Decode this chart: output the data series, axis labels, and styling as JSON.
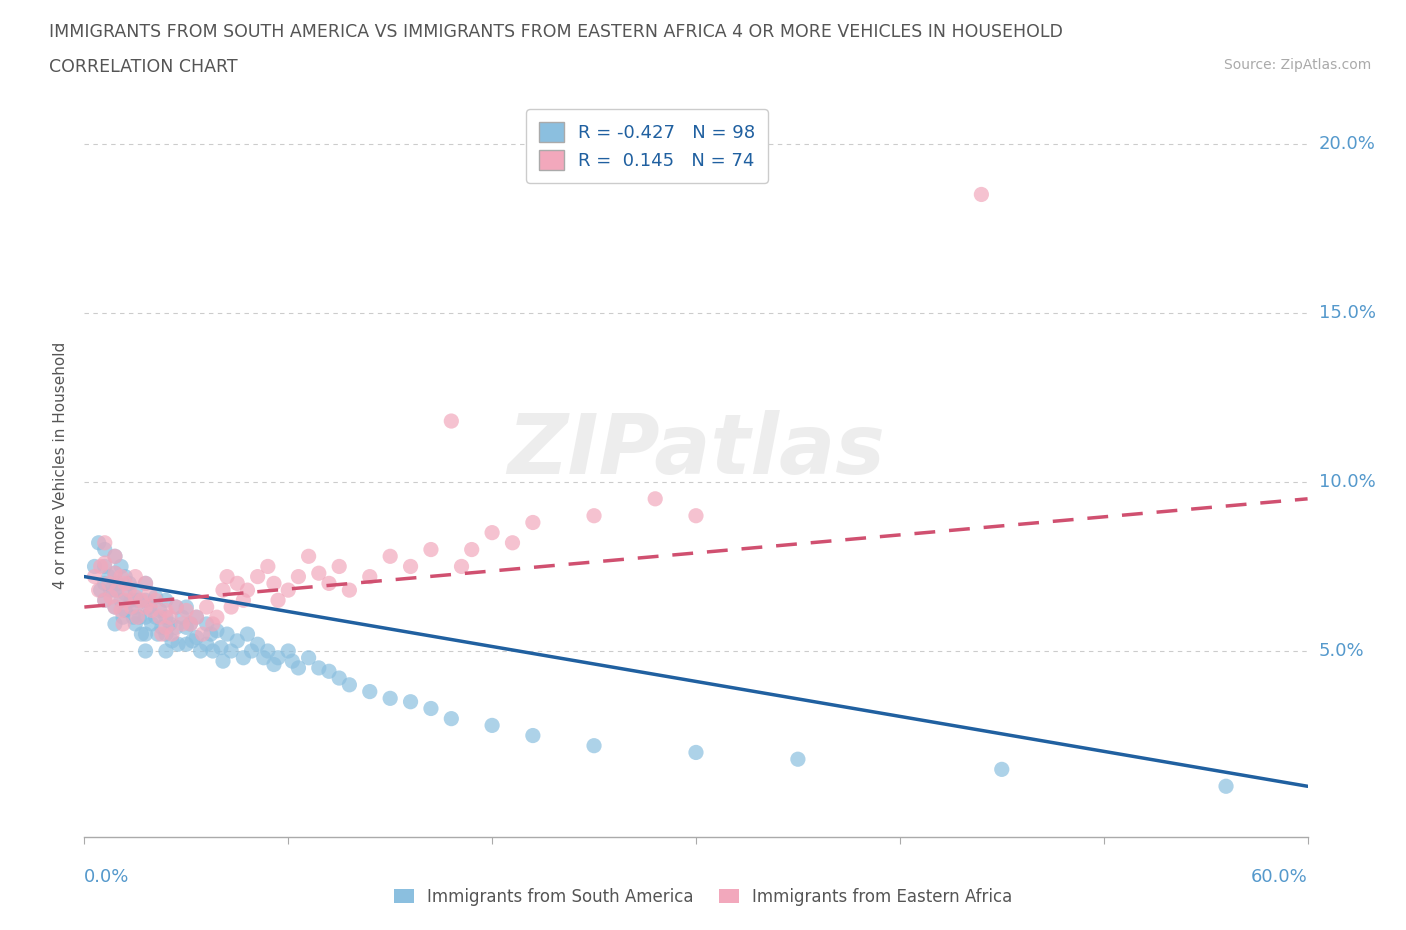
{
  "title_line1": "IMMIGRANTS FROM SOUTH AMERICA VS IMMIGRANTS FROM EASTERN AFRICA 4 OR MORE VEHICLES IN HOUSEHOLD",
  "title_line2": "CORRELATION CHART",
  "source_text": "Source: ZipAtlas.com",
  "ylabel": "4 or more Vehicles in Household",
  "ytick_vals": [
    0.0,
    0.05,
    0.1,
    0.15,
    0.2
  ],
  "ytick_labels": [
    "",
    "5.0%",
    "10.0%",
    "15.0%",
    "20.0%"
  ],
  "xlim": [
    0.0,
    0.6
  ],
  "ylim": [
    -0.005,
    0.215
  ],
  "legend_label1": "R = -0.427   N = 98",
  "legend_label2": "R =  0.145   N = 74",
  "color_blue": "#8bbfdf",
  "color_pink": "#f2a8bc",
  "color_blue_line": "#2060a0",
  "color_pink_line": "#d05070",
  "color_axis_tick": "#5599cc",
  "watermark_text": "ZIPatlas",
  "blue_x": [
    0.005,
    0.007,
    0.008,
    0.01,
    0.01,
    0.01,
    0.01,
    0.012,
    0.013,
    0.015,
    0.015,
    0.015,
    0.015,
    0.015,
    0.016,
    0.018,
    0.018,
    0.019,
    0.02,
    0.02,
    0.02,
    0.022,
    0.023,
    0.024,
    0.025,
    0.025,
    0.025,
    0.026,
    0.027,
    0.028,
    0.03,
    0.03,
    0.03,
    0.03,
    0.03,
    0.032,
    0.033,
    0.035,
    0.035,
    0.036,
    0.037,
    0.038,
    0.04,
    0.04,
    0.04,
    0.04,
    0.042,
    0.043,
    0.045,
    0.045,
    0.046,
    0.048,
    0.05,
    0.05,
    0.05,
    0.052,
    0.053,
    0.055,
    0.055,
    0.057,
    0.06,
    0.06,
    0.062,
    0.063,
    0.065,
    0.067,
    0.068,
    0.07,
    0.072,
    0.075,
    0.078,
    0.08,
    0.082,
    0.085,
    0.088,
    0.09,
    0.093,
    0.095,
    0.1,
    0.102,
    0.105,
    0.11,
    0.115,
    0.12,
    0.125,
    0.13,
    0.14,
    0.15,
    0.16,
    0.17,
    0.18,
    0.2,
    0.22,
    0.25,
    0.3,
    0.35,
    0.45,
    0.56
  ],
  "blue_y": [
    0.075,
    0.082,
    0.068,
    0.075,
    0.07,
    0.065,
    0.08,
    0.072,
    0.068,
    0.078,
    0.073,
    0.068,
    0.063,
    0.058,
    0.07,
    0.075,
    0.065,
    0.06,
    0.072,
    0.067,
    0.062,
    0.07,
    0.065,
    0.06,
    0.068,
    0.063,
    0.058,
    0.065,
    0.06,
    0.055,
    0.07,
    0.065,
    0.06,
    0.055,
    0.05,
    0.063,
    0.058,
    0.066,
    0.06,
    0.055,
    0.062,
    0.057,
    0.065,
    0.06,
    0.055,
    0.05,
    0.058,
    0.053,
    0.063,
    0.057,
    0.052,
    0.06,
    0.063,
    0.057,
    0.052,
    0.058,
    0.053,
    0.06,
    0.054,
    0.05,
    0.058,
    0.052,
    0.055,
    0.05,
    0.056,
    0.051,
    0.047,
    0.055,
    0.05,
    0.053,
    0.048,
    0.055,
    0.05,
    0.052,
    0.048,
    0.05,
    0.046,
    0.048,
    0.05,
    0.047,
    0.045,
    0.048,
    0.045,
    0.044,
    0.042,
    0.04,
    0.038,
    0.036,
    0.035,
    0.033,
    0.03,
    0.028,
    0.025,
    0.022,
    0.02,
    0.018,
    0.015,
    0.01
  ],
  "pink_x": [
    0.005,
    0.007,
    0.008,
    0.01,
    0.01,
    0.01,
    0.012,
    0.013,
    0.015,
    0.015,
    0.015,
    0.016,
    0.018,
    0.018,
    0.019,
    0.02,
    0.02,
    0.022,
    0.023,
    0.025,
    0.025,
    0.026,
    0.028,
    0.03,
    0.03,
    0.032,
    0.033,
    0.035,
    0.037,
    0.038,
    0.04,
    0.04,
    0.042,
    0.043,
    0.045,
    0.048,
    0.05,
    0.052,
    0.055,
    0.058,
    0.06,
    0.063,
    0.065,
    0.068,
    0.07,
    0.072,
    0.075,
    0.078,
    0.08,
    0.085,
    0.09,
    0.093,
    0.095,
    0.1,
    0.105,
    0.11,
    0.115,
    0.12,
    0.125,
    0.13,
    0.14,
    0.15,
    0.16,
    0.17,
    0.18,
    0.185,
    0.19,
    0.2,
    0.21,
    0.22,
    0.25,
    0.28,
    0.3,
    0.44
  ],
  "pink_y": [
    0.072,
    0.068,
    0.075,
    0.082,
    0.076,
    0.065,
    0.07,
    0.066,
    0.078,
    0.073,
    0.063,
    0.068,
    0.072,
    0.062,
    0.058,
    0.07,
    0.065,
    0.068,
    0.063,
    0.072,
    0.066,
    0.06,
    0.065,
    0.07,
    0.063,
    0.067,
    0.062,
    0.065,
    0.06,
    0.055,
    0.062,
    0.057,
    0.06,
    0.055,
    0.063,
    0.058,
    0.062,
    0.058,
    0.06,
    0.055,
    0.063,
    0.058,
    0.06,
    0.068,
    0.072,
    0.063,
    0.07,
    0.065,
    0.068,
    0.072,
    0.075,
    0.07,
    0.065,
    0.068,
    0.072,
    0.078,
    0.073,
    0.07,
    0.075,
    0.068,
    0.072,
    0.078,
    0.075,
    0.08,
    0.118,
    0.075,
    0.08,
    0.085,
    0.082,
    0.088,
    0.09,
    0.095,
    0.09,
    0.185
  ],
  "blue_line_x": [
    0.0,
    0.6
  ],
  "blue_line_y": [
    0.072,
    0.01
  ],
  "pink_line_x": [
    0.0,
    0.6
  ],
  "pink_line_y": [
    0.063,
    0.095
  ]
}
